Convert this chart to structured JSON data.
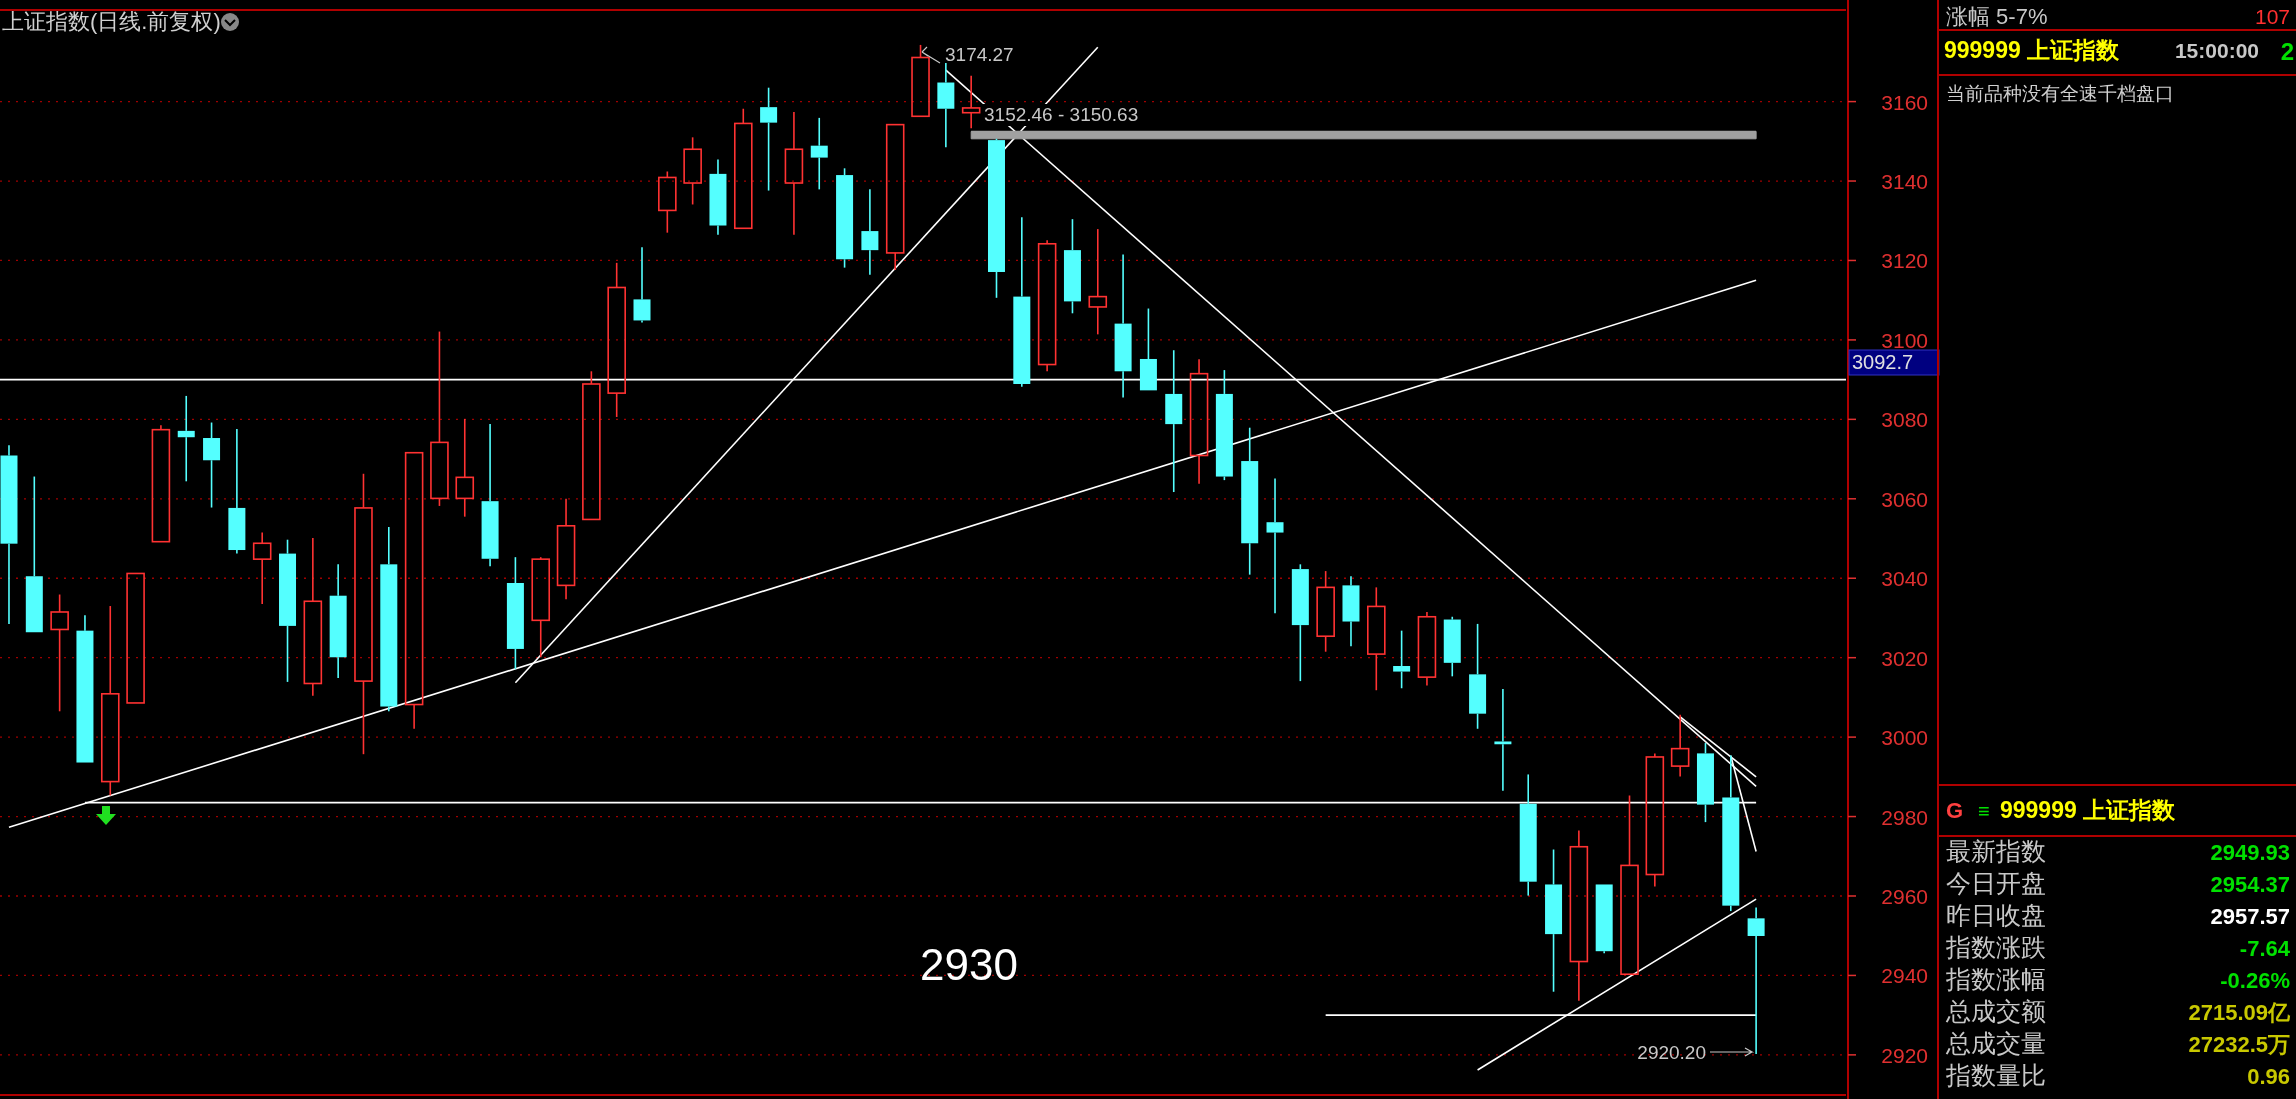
{
  "chart_data": [
    {
      "type": "candlestick",
      "title": "上证指数(日线.前复权)",
      "categories": [
        null,
        null,
        null,
        null,
        null,
        null,
        null,
        null,
        null,
        null,
        null,
        null,
        null,
        null,
        null,
        null,
        null,
        null,
        null,
        null,
        null,
        null,
        null,
        null,
        null,
        null,
        null,
        null,
        null,
        null,
        null,
        null,
        null,
        null,
        null,
        null,
        null,
        null,
        null,
        null,
        null,
        null,
        null,
        null,
        null,
        null,
        null,
        null,
        null,
        null,
        null,
        null,
        null,
        null,
        null,
        null,
        null,
        null,
        null,
        null,
        null,
        null,
        null,
        null,
        null,
        null,
        null,
        null,
        null,
        null
      ],
      "ohlc": [
        [
          3070.9,
          3073.5,
          3028.5,
          3048.7
        ],
        [
          3040.5,
          3065.6,
          3026.4,
          3026.4
        ],
        [
          3027.1,
          3035.9,
          3006.5,
          3031.5
        ],
        [
          3026.8,
          3030.7,
          2993.6,
          2993.6
        ],
        [
          2988.8,
          3033.0,
          2985.3,
          3010.9
        ],
        [
          3008.6,
          3041.2,
          3008.6,
          3041.2
        ],
        [
          3049.2,
          3078.5,
          3049.2,
          3077.4
        ],
        [
          3077.1,
          3085.9,
          3064.4,
          3075.5
        ],
        [
          3075.3,
          3079.2,
          3057.8,
          3069.7
        ],
        [
          3057.7,
          3077.6,
          3046.2,
          3047.1
        ],
        [
          3044.8,
          3051.5,
          3033.5,
          3048.8
        ],
        [
          3046.2,
          3049.7,
          3013.9,
          3028.0
        ],
        [
          3013.5,
          3050.1,
          3010.4,
          3034.2
        ],
        [
          3035.6,
          3043.5,
          3014.9,
          3020.1
        ],
        [
          3014.1,
          3066.3,
          2995.7,
          3057.7
        ],
        [
          3043.5,
          3052.9,
          3006.5,
          3007.7
        ],
        [
          3008.2,
          3071.6,
          3002.1,
          3071.6
        ],
        [
          3060.1,
          3102.1,
          3058.2,
          3074.2
        ],
        [
          3060.1,
          3080.1,
          3055.5,
          3065.4
        ],
        [
          3059.4,
          3078.8,
          3043.0,
          3044.9
        ],
        [
          3038.8,
          3045.3,
          3017.1,
          3022.2
        ],
        [
          3029.4,
          3045.3,
          3020.1,
          3044.8
        ],
        [
          3038.2,
          3060.0,
          3034.7,
          3053.2
        ],
        [
          3054.8,
          3092.1,
          3054.8,
          3088.9
        ],
        [
          3086.6,
          3119.4,
          3080.6,
          3113.2
        ],
        [
          3110.2,
          3123.3,
          3104.4,
          3104.9
        ],
        [
          3132.6,
          3142.4,
          3127.0,
          3140.9
        ],
        [
          3139.5,
          3151.0,
          3134.1,
          3148.0
        ],
        [
          3141.8,
          3145.4,
          3126.5,
          3128.8
        ],
        [
          3128.1,
          3158.2,
          3128.1,
          3154.5
        ],
        [
          3158.6,
          3163.5,
          3137.6,
          3154.7
        ],
        [
          3139.5,
          3157.4,
          3126.5,
          3148.0
        ],
        [
          3148.9,
          3155.9,
          3137.9,
          3145.9
        ],
        [
          3141.5,
          3143.2,
          3118.2,
          3120.3
        ],
        [
          3127.4,
          3137.9,
          3116.4,
          3122.6
        ],
        [
          3121.9,
          3154.2,
          3117.6,
          3154.2
        ],
        [
          3156.3,
          3174.27,
          3156.3,
          3171.1
        ],
        [
          3164.8,
          3169.7,
          3148.5,
          3158.2
        ],
        [
          3157.2,
          3166.5,
          3153.3,
          3158.4
        ],
        [
          3150.3,
          3150.63,
          3110.6,
          3117.1
        ],
        [
          3110.9,
          3130.9,
          3088.2,
          3088.9
        ],
        [
          3093.8,
          3125.1,
          3092.1,
          3124.2
        ],
        [
          3122.6,
          3130.4,
          3106.7,
          3109.7
        ],
        [
          3108.3,
          3127.9,
          3101.4,
          3110.9
        ],
        [
          3104.1,
          3121.5,
          3085.5,
          3092.1
        ],
        [
          3095.2,
          3107.9,
          3087.3,
          3087.3
        ],
        [
          3086.4,
          3097.4,
          3061.7,
          3078.8
        ],
        [
          3070.9,
          3095.1,
          3063.8,
          3091.5
        ],
        [
          3086.4,
          3092.4,
          3064.7,
          3065.6
        ],
        [
          3069.5,
          3077.9,
          3040.9,
          3048.8
        ],
        [
          3054.1,
          3065.1,
          3031.2,
          3051.5
        ],
        [
          3042.3,
          3043.5,
          3014.1,
          3028.2
        ],
        [
          3025.4,
          3041.8,
          3021.5,
          3037.7
        ],
        [
          3038.2,
          3040.5,
          3022.9,
          3029.1
        ],
        [
          3020.9,
          3037.7,
          3011.8,
          3032.9
        ],
        [
          3017.9,
          3026.8,
          3012.3,
          3016.5
        ],
        [
          3015.1,
          3031.5,
          3013.0,
          3030.3
        ],
        [
          3029.6,
          3030.3,
          3015.3,
          3018.7
        ],
        [
          3015.8,
          3028.5,
          3002.1,
          3005.9
        ],
        [
          2998.9,
          3012.1,
          2986.5,
          2998.2
        ],
        [
          2983.2,
          2990.6,
          2960.1,
          2963.6
        ],
        [
          2962.9,
          2971.7,
          2935.9,
          2950.4
        ],
        [
          2943.5,
          2976.5,
          2933.6,
          2972.4
        ],
        [
          2962.9,
          2962.9,
          2945.6,
          2946.1
        ],
        [
          2940.3,
          2985.3,
          2940.3,
          2967.7
        ],
        [
          2965.4,
          2995.9,
          2962.4,
          2995.0
        ],
        [
          2992.7,
          3005.6,
          2990.1,
          2997.1
        ],
        [
          2995.9,
          2998.5,
          2978.6,
          2983.0
        ],
        [
          2984.8,
          2995.4,
          2956.2,
          2957.57
        ],
        [
          2954.37,
          2957.1,
          2920.2,
          2949.93
        ]
      ],
      "colors": [
        "#54ffff",
        "#54ffff",
        "#ff3232",
        "#54ffff",
        "#ff3232",
        "#ff3232",
        "#ff3232",
        "#54ffff",
        "#54ffff",
        "#54ffff",
        "#ff3232",
        "#54ffff",
        "#ff3232",
        "#54ffff",
        "#ff3232",
        "#54ffff",
        "#ff3232",
        "#ff3232",
        "#ff3232",
        "#54ffff",
        "#54ffff",
        "#ff3232",
        "#ff3232",
        "#ff3232",
        "#ff3232",
        "#54ffff",
        "#ff3232",
        "#ff3232",
        "#54ffff",
        "#ff3232",
        "#54ffff",
        "#ff3232",
        "#54ffff",
        "#54ffff",
        "#54ffff",
        "#ff3232",
        "#ff3232",
        "#54ffff",
        "#ff3232",
        "#54ffff",
        "#54ffff",
        "#ff3232",
        "#54ffff",
        "#ff3232",
        "#54ffff",
        "#54ffff",
        "#54ffff",
        "#ff3232",
        "#54ffff",
        "#54ffff",
        "#54ffff",
        "#54ffff",
        "#ff3232",
        "#54ffff",
        "#ff3232",
        "#54ffff",
        "#ff3232",
        "#54ffff",
        "#54ffff",
        "#54ffff",
        "#54ffff",
        "#54ffff",
        "#ff3232",
        "#54ffff",
        "#ff3232",
        "#ff3232",
        "#ff3232",
        "#54ffff",
        "#54ffff",
        "#54ffff"
      ],
      "series": [
        {
          "type": "line",
          "color": "#ffffff",
          "values": [
            2977.3,
            null,
            null,
            null,
            null,
            null,
            null,
            null,
            null,
            null,
            null,
            null,
            null,
            null,
            null,
            null,
            null,
            null,
            null,
            null,
            null,
            null,
            null,
            null,
            null,
            null,
            null,
            null,
            null,
            null,
            null,
            null,
            null,
            null,
            null,
            null,
            null,
            null,
            null,
            null,
            null,
            null,
            null,
            null,
            null,
            null,
            null,
            null,
            null,
            null,
            null,
            null,
            null,
            null,
            null,
            null,
            null,
            null,
            null,
            null,
            null,
            null,
            null,
            null,
            null,
            null,
            null,
            null,
            null,
            3115.0
          ]
        },
        {
          "type": "line",
          "color": "#ffffff",
          "values": [
            null,
            null,
            null,
            null,
            null,
            null,
            null,
            null,
            null,
            null,
            null,
            null,
            null,
            null,
            null,
            null,
            null,
            null,
            null,
            null,
            3013.7,
            null,
            null,
            null,
            null,
            null,
            null,
            null,
            null,
            null,
            null,
            null,
            null,
            null,
            null,
            null,
            null,
            null,
            null,
            null,
            null,
            null,
            null,
            3173.7,
            null,
            null,
            null,
            null,
            null,
            null,
            null,
            null,
            null,
            null,
            null,
            null,
            null,
            null,
            null,
            null,
            null,
            null,
            null,
            null,
            null,
            null,
            null,
            null,
            null,
            null
          ]
        },
        {
          "type": "line",
          "color": "#ffffff",
          "values": [
            null,
            null,
            null,
            null,
            null,
            null,
            null,
            null,
            null,
            null,
            null,
            null,
            null,
            null,
            null,
            null,
            null,
            null,
            null,
            null,
            null,
            null,
            null,
            null,
            null,
            null,
            null,
            null,
            null,
            null,
            null,
            null,
            null,
            null,
            null,
            null,
            null,
            3167.9,
            null,
            null,
            null,
            null,
            null,
            null,
            null,
            null,
            null,
            null,
            null,
            null,
            null,
            null,
            null,
            null,
            null,
            null,
            null,
            null,
            null,
            null,
            null,
            null,
            null,
            null,
            null,
            null,
            null,
            null,
            null,
            2987.6
          ]
        },
        {
          "type": "line",
          "color": "#ffffff",
          "values": [
            null,
            null,
            null,
            null,
            null,
            null,
            null,
            null,
            null,
            null,
            null,
            null,
            null,
            null,
            null,
            null,
            null,
            null,
            null,
            null,
            null,
            null,
            null,
            null,
            null,
            null,
            null,
            null,
            null,
            null,
            null,
            null,
            null,
            null,
            null,
            null,
            null,
            null,
            null,
            null,
            null,
            null,
            null,
            null,
            null,
            null,
            null,
            null,
            null,
            null,
            null,
            null,
            null,
            null,
            null,
            null,
            null,
            null,
            null,
            null,
            null,
            null,
            null,
            null,
            null,
            null,
            3005.1,
            null,
            null,
            2990.0
          ]
        },
        {
          "type": "line",
          "color": "#ffffff",
          "values": [
            null,
            null,
            null,
            null,
            null,
            null,
            null,
            null,
            null,
            null,
            null,
            null,
            null,
            null,
            null,
            null,
            null,
            null,
            null,
            null,
            null,
            null,
            null,
            null,
            null,
            null,
            null,
            null,
            null,
            null,
            null,
            null,
            null,
            null,
            null,
            null,
            null,
            null,
            null,
            null,
            null,
            null,
            null,
            null,
            null,
            null,
            null,
            null,
            null,
            null,
            null,
            null,
            null,
            null,
            null,
            null,
            null,
            null,
            null,
            null,
            null,
            null,
            null,
            null,
            null,
            null,
            null,
            null,
            2995.3,
            2971.2
          ]
        },
        {
          "type": "line",
          "color": "#ffffff",
          "values": [
            null,
            null,
            null,
            null,
            null,
            null,
            null,
            null,
            null,
            null,
            null,
            null,
            null,
            null,
            null,
            null,
            null,
            null,
            null,
            null,
            null,
            null,
            null,
            null,
            null,
            null,
            null,
            null,
            null,
            null,
            null,
            null,
            null,
            null,
            null,
            null,
            null,
            null,
            null,
            null,
            null,
            null,
            null,
            null,
            null,
            null,
            null,
            null,
            null,
            null,
            null,
            null,
            null,
            null,
            null,
            null,
            null,
            null,
            2916.2,
            null,
            null,
            null,
            null,
            null,
            null,
            null,
            null,
            null,
            null,
            2959.2
          ]
        },
        {
          "type": "line",
          "color": "#ffffff",
          "values": [
            null,
            null,
            null,
            2983.5,
            null,
            null,
            null,
            null,
            null,
            null,
            null,
            null,
            null,
            null,
            null,
            null,
            null,
            null,
            null,
            null,
            null,
            null,
            null,
            null,
            null,
            null,
            null,
            null,
            null,
            null,
            null,
            null,
            null,
            null,
            null,
            null,
            null,
            null,
            null,
            null,
            null,
            null,
            null,
            null,
            null,
            null,
            null,
            null,
            null,
            null,
            null,
            null,
            null,
            null,
            null,
            null,
            null,
            null,
            null,
            null,
            null,
            null,
            null,
            null,
            null,
            null,
            null,
            null,
            null,
            2983.5
          ]
        },
        {
          "type": "line",
          "color": "#ffffff",
          "values": [
            null,
            null,
            null,
            null,
            null,
            null,
            null,
            null,
            null,
            null,
            null,
            null,
            null,
            null,
            null,
            null,
            null,
            null,
            null,
            null,
            null,
            null,
            null,
            null,
            null,
            null,
            null,
            null,
            null,
            null,
            null,
            null,
            null,
            null,
            null,
            null,
            null,
            null,
            null,
            null,
            null,
            null,
            null,
            null,
            null,
            null,
            null,
            null,
            null,
            null,
            null,
            null,
            2930,
            null,
            null,
            null,
            null,
            null,
            null,
            null,
            null,
            null,
            null,
            null,
            null,
            null,
            null,
            null,
            null,
            2930
          ]
        },
        {
          "type": "line",
          "color": "#a0a0a0",
          "values": [
            null,
            null,
            null,
            null,
            null,
            null,
            null,
            null,
            null,
            null,
            null,
            null,
            null,
            null,
            null,
            null,
            null,
            null,
            null,
            null,
            null,
            null,
            null,
            null,
            null,
            null,
            null,
            null,
            null,
            null,
            null,
            null,
            null,
            null,
            null,
            null,
            null,
            null,
            3152.46,
            null,
            null,
            null,
            null,
            null,
            null,
            null,
            null,
            null,
            null,
            null,
            null,
            null,
            null,
            null,
            null,
            null,
            null,
            null,
            null,
            null,
            null,
            null,
            null,
            null,
            null,
            null,
            null,
            null,
            null,
            3152.46
          ],
          "lower": [
            null,
            null,
            null,
            null,
            null,
            null,
            null,
            null,
            null,
            null,
            null,
            null,
            null,
            null,
            null,
            null,
            null,
            null,
            null,
            null,
            null,
            null,
            null,
            null,
            null,
            null,
            null,
            null,
            null,
            null,
            null,
            null,
            null,
            null,
            null,
            null,
            null,
            null,
            3150.63,
            null,
            null,
            null,
            null,
            null,
            null,
            null,
            null,
            null,
            null,
            null,
            null,
            null,
            null,
            null,
            null,
            null,
            null,
            null,
            null,
            null,
            null,
            null,
            null,
            null,
            null,
            null,
            null,
            null,
            null,
            3150.63
          ],
          "upper": [
            null,
            null,
            null,
            null,
            null,
            null,
            null,
            null,
            null,
            null,
            null,
            null,
            null,
            null,
            null,
            null,
            null,
            null,
            null,
            null,
            null,
            null,
            null,
            null,
            null,
            null,
            null,
            null,
            null,
            null,
            null,
            null,
            null,
            null,
            null,
            null,
            null,
            null,
            3152.46,
            null,
            null,
            null,
            null,
            null,
            null,
            null,
            null,
            null,
            null,
            null,
            null,
            null,
            null,
            null,
            null,
            null,
            null,
            null,
            null,
            null,
            null,
            null,
            null,
            null,
            null,
            null,
            null,
            null,
            null,
            3152.46
          ]
        }
      ],
      "ref_lines": [
        {
          "axis": "y",
          "value": 3090,
          "color": "#ffffff"
        }
      ],
      "ylim": [
        2910.4,
        3181.8
      ],
      "yticks": [
        2920,
        2940,
        2960,
        2980,
        3000,
        3020,
        3040,
        3060,
        3080,
        3100,
        3120,
        3140,
        3160
      ],
      "grid": "y",
      "tick_labels": "y",
      "annotations": [
        "3174.27",
        "3152.46 - 3150.63",
        "2920.20",
        "3092.7",
        "2930"
      ]
    },
    {
      "type": "other",
      "annotations": [
        "涨幅 5-7%",
        "107",
        "999999 上证指数",
        "15:00:00",
        "2",
        "当前品种没有全速千档盘口",
        "G",
        "≡",
        "999999 上证指数"
      ],
      "categories": [
        "最新指数",
        "今日开盘",
        "昨日收盘",
        "指数涨跌",
        "指数涨幅",
        "总成交额",
        "总成交量",
        "指数量比"
      ],
      "value_labels": [
        "2949.93",
        "2954.37",
        "2957.57",
        "-7.64",
        "-0.26%",
        "2715.09亿",
        "27232.5万",
        "0.96"
      ],
      "colors": [
        "#00e000",
        "#00e000",
        "#ffffff",
        "#00e000",
        "#00e000",
        "#c8c800",
        "#c8c800",
        "#c8c800"
      ]
    }
  ]
}
